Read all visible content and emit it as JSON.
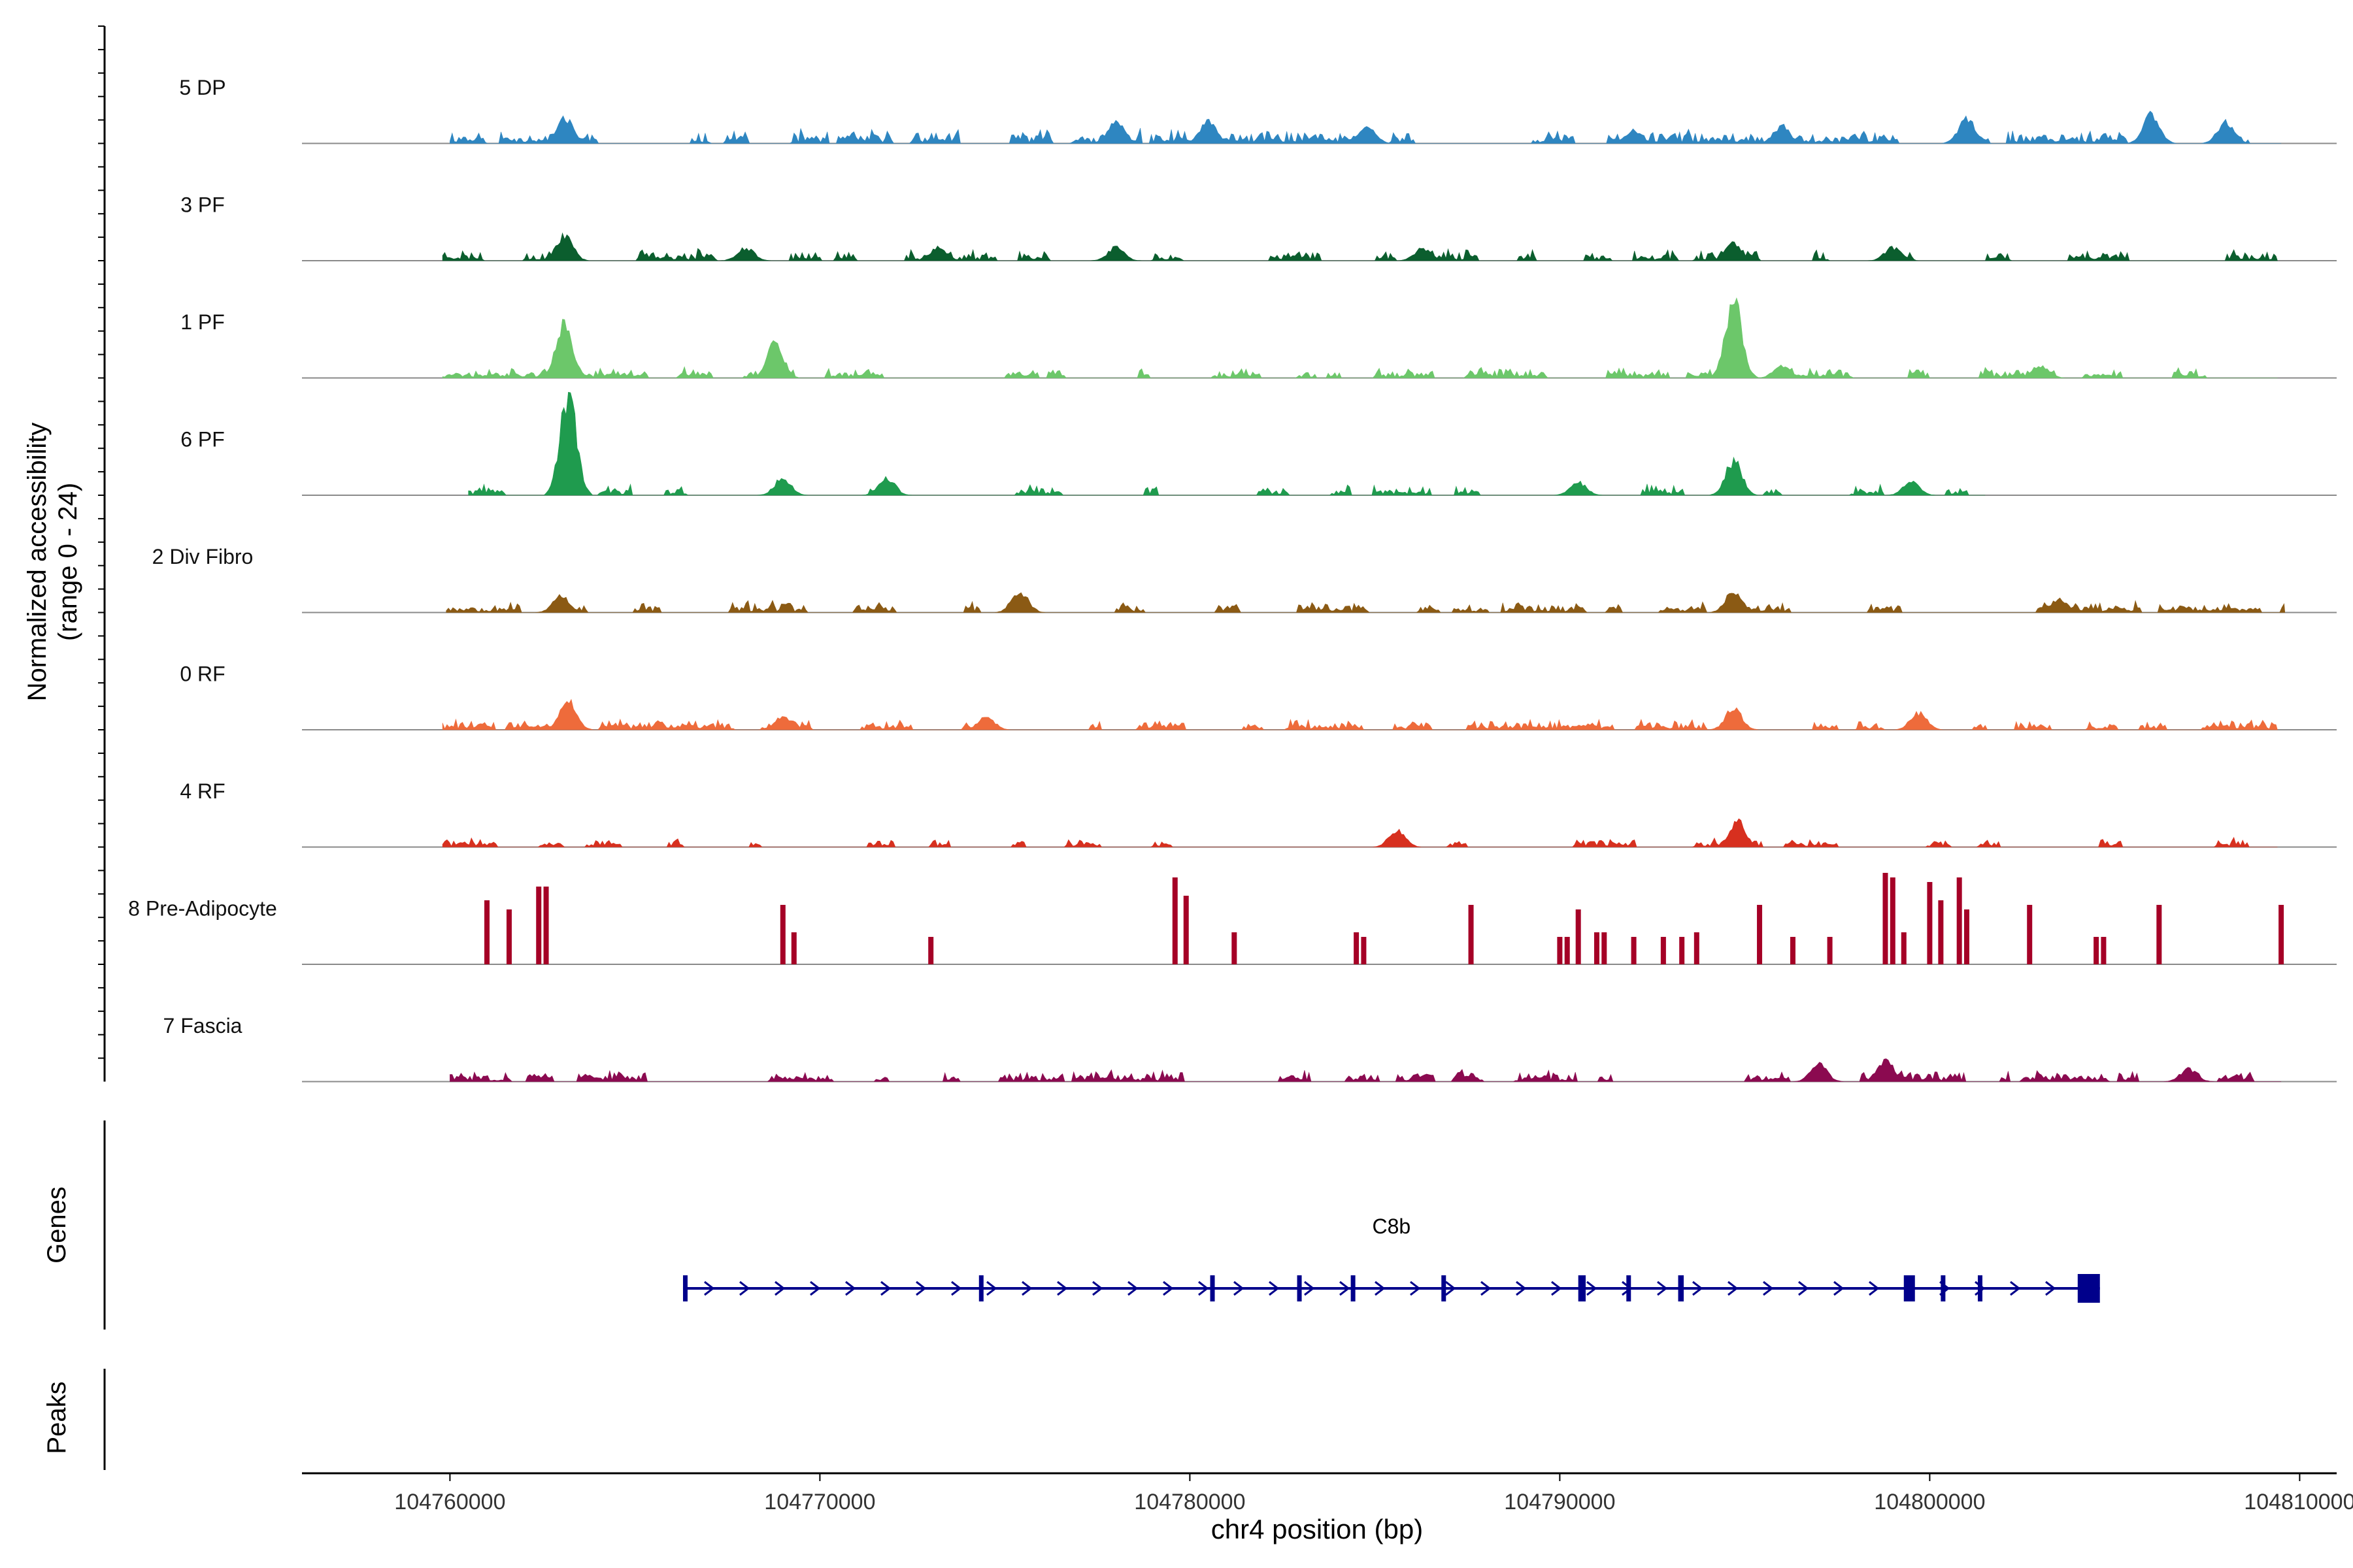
{
  "chart_data": {
    "type": "area",
    "title": "",
    "ylabel_line1": "Normalized accessibility",
    "ylabel_line2": "(range 0 - 24)",
    "y_range": [
      0,
      24
    ],
    "xlabel": "chr4 position (bp)",
    "xlim": [
      104756000,
      104811000
    ],
    "x_ticks": [
      104760000,
      104770000,
      104780000,
      104790000,
      104800000,
      104810000
    ],
    "x_tick_labels": [
      "104760000",
      "104770000",
      "104780000",
      "104790000",
      "104800000",
      "104810000"
    ],
    "tracks": [
      {
        "name": "5 DP",
        "color": "#2E86C1",
        "region": [
          104760000,
          104809500
        ],
        "peaks": [
          {
            "x": 104763100,
            "h": 6
          },
          {
            "x": 104778000,
            "h": 5
          },
          {
            "x": 104780500,
            "h": 5
          },
          {
            "x": 104784800,
            "h": 4
          },
          {
            "x": 104792000,
            "h": 3
          },
          {
            "x": 104796000,
            "h": 4
          },
          {
            "x": 104801000,
            "h": 6
          },
          {
            "x": 104806000,
            "h": 7
          },
          {
            "x": 104808000,
            "h": 5
          }
        ],
        "noise": {
          "amp": 2.5,
          "density": 0.55,
          "seed": 11
        }
      },
      {
        "name": "3 PF",
        "color": "#0B5E2E",
        "region": [
          104759800,
          104809400
        ],
        "peaks": [
          {
            "x": 104763100,
            "h": 6
          },
          {
            "x": 104768000,
            "h": 3
          },
          {
            "x": 104773200,
            "h": 3
          },
          {
            "x": 104778000,
            "h": 3
          },
          {
            "x": 104786300,
            "h": 3
          },
          {
            "x": 104794700,
            "h": 4
          },
          {
            "x": 104799000,
            "h": 3
          }
        ],
        "noise": {
          "amp": 2.0,
          "density": 0.45,
          "seed": 23
        }
      },
      {
        "name": "1 PF",
        "color": "#6CC76A",
        "region": [
          104759800,
          104809400
        ],
        "peaks": [
          {
            "x": 104763100,
            "h": 13
          },
          {
            "x": 104768800,
            "h": 8
          },
          {
            "x": 104794700,
            "h": 18
          },
          {
            "x": 104796000,
            "h": 3
          },
          {
            "x": 104803000,
            "h": 3
          }
        ],
        "noise": {
          "amp": 1.8,
          "density": 0.5,
          "seed": 37
        }
      },
      {
        "name": "6 PF",
        "color": "#1F9B4E",
        "region": [
          104760500,
          104801500
        ],
        "peaks": [
          {
            "x": 104763200,
            "h": 24
          },
          {
            "x": 104769000,
            "h": 4
          },
          {
            "x": 104771800,
            "h": 4
          },
          {
            "x": 104790500,
            "h": 3
          },
          {
            "x": 104794700,
            "h": 8
          },
          {
            "x": 104799500,
            "h": 3
          }
        ],
        "noise": {
          "amp": 1.8,
          "density": 0.28,
          "seed": 41
        }
      },
      {
        "name": "2 Div Fibro",
        "color": "#8B5A14",
        "region": [
          104759900,
          104809600
        ],
        "peaks": [
          {
            "x": 104763000,
            "h": 4
          },
          {
            "x": 104775400,
            "h": 5
          },
          {
            "x": 104794700,
            "h": 5
          },
          {
            "x": 104803500,
            "h": 3
          }
        ],
        "noise": {
          "amp": 2.0,
          "density": 0.5,
          "seed": 53
        }
      },
      {
        "name": "0 RF",
        "color": "#EE6B3B",
        "region": [
          104759800,
          104809400
        ],
        "peaks": [
          {
            "x": 104763200,
            "h": 7
          },
          {
            "x": 104769000,
            "h": 3
          },
          {
            "x": 104774500,
            "h": 3
          },
          {
            "x": 104794700,
            "h": 5
          },
          {
            "x": 104799700,
            "h": 4
          }
        ],
        "noise": {
          "amp": 1.8,
          "density": 0.55,
          "seed": 61
        }
      },
      {
        "name": "4 RF",
        "color": "#D7301F",
        "region": [
          104759800,
          104809400
        ],
        "peaks": [
          {
            "x": 104785600,
            "h": 4
          },
          {
            "x": 104794800,
            "h": 6
          }
        ],
        "noise": {
          "amp": 1.5,
          "density": 0.35,
          "seed": 71
        }
      },
      {
        "name": "8 Pre-Adipocyte",
        "color": "#A50026",
        "region": [
          104760500,
          104809500
        ],
        "bars": [
          104761000,
          104761600,
          104762400,
          104762600,
          104769000,
          104769300,
          104773000,
          104779600,
          104779900,
          104781200,
          104784500,
          104784700,
          104787600,
          104790000,
          104790200,
          104790500,
          104791000,
          104791200,
          104792000,
          104792800,
          104793300,
          104793700,
          104795400,
          104796300,
          104797300,
          104798800,
          104799000,
          104799300,
          104800000,
          104800300,
          104800800,
          104801000,
          104802700,
          104804500,
          104804700,
          104806200,
          104809500
        ],
        "bar_heights": [
          14,
          12,
          17,
          17,
          13,
          7,
          6,
          19,
          15,
          7,
          7,
          6,
          13,
          6,
          6,
          12,
          7,
          7,
          6,
          6,
          6,
          7,
          13,
          6,
          6,
          20,
          19,
          7,
          18,
          14,
          19,
          12,
          13,
          6,
          6,
          13,
          13
        ]
      },
      {
        "name": "7 Fascia",
        "color": "#8B0A50",
        "region": [
          104760000,
          104809500
        ],
        "peaks": [
          {
            "x": 104798800,
            "h": 5
          },
          {
            "x": 104797000,
            "h": 4
          },
          {
            "x": 104807000,
            "h": 3
          }
        ],
        "noise": {
          "amp": 2.0,
          "density": 0.5,
          "seed": 83
        }
      }
    ],
    "genes": {
      "panel_label": "Genes",
      "items": [
        {
          "name": "C8b",
          "start": 104766300,
          "end": 104804600,
          "strand": "+",
          "exons": [
            [
              104766300,
              104766400
            ],
            [
              104774300,
              104774400
            ],
            [
              104780550,
              104780650
            ],
            [
              104782900,
              104782950
            ],
            [
              104784350,
              104784450
            ],
            [
              104786800,
              104786900
            ],
            [
              104790500,
              104790700
            ],
            [
              104791800,
              104791900
            ],
            [
              104793200,
              104793350
            ],
            [
              104799300,
              104799600
            ],
            [
              104800300,
              104800400
            ],
            [
              104801300,
              104801350
            ],
            [
              104804000,
              104804600
            ]
          ]
        }
      ]
    },
    "peaks_panel": {
      "panel_label": "Peaks",
      "items": []
    }
  }
}
